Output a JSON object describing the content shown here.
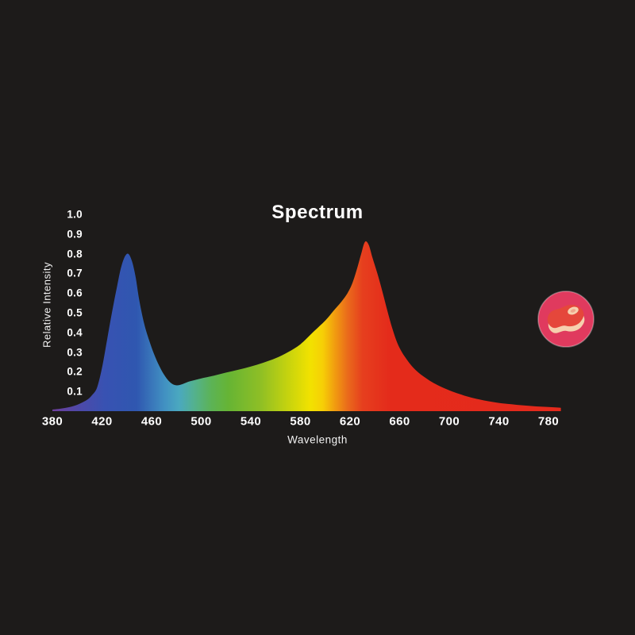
{
  "page": {
    "background_color": "#1d1b1a",
    "text_color": "#ffffff"
  },
  "chart": {
    "title": "Spectrum",
    "xlabel": "Wavelength",
    "ylabel": "Relative Intensity"
  },
  "chart_data": {
    "type": "area",
    "title": "Spectrum",
    "xlabel": "Wavelength",
    "ylabel": "Relative Intensity",
    "x_unit": "nm",
    "xlim": [
      380,
      790
    ],
    "ylim": [
      0,
      1.0
    ],
    "xticks": [
      380,
      420,
      460,
      500,
      540,
      580,
      620,
      660,
      700,
      740,
      780
    ],
    "yticks": [
      0.1,
      0.2,
      0.3,
      0.4,
      0.5,
      0.6,
      0.7,
      0.8,
      0.9,
      1.0
    ],
    "grid": false,
    "legend": false,
    "peaks": [
      {
        "x": 441,
        "y": 0.8,
        "label": "blue peak"
      },
      {
        "x": 632,
        "y": 0.86,
        "label": "red peak"
      }
    ],
    "series": [
      {
        "name": "relative_intensity",
        "fill": "spectral-gradient",
        "points": [
          [
            380,
            0.008
          ],
          [
            388,
            0.014
          ],
          [
            396,
            0.024
          ],
          [
            402,
            0.038
          ],
          [
            408,
            0.058
          ],
          [
            412,
            0.082
          ],
          [
            416,
            0.12
          ],
          [
            420,
            0.22
          ],
          [
            424,
            0.36
          ],
          [
            428,
            0.5
          ],
          [
            432,
            0.63
          ],
          [
            435,
            0.72
          ],
          [
            438,
            0.78
          ],
          [
            441,
            0.8
          ],
          [
            444,
            0.765
          ],
          [
            447,
            0.685
          ],
          [
            450,
            0.565
          ],
          [
            454,
            0.445
          ],
          [
            458,
            0.36
          ],
          [
            462,
            0.29
          ],
          [
            466,
            0.232
          ],
          [
            470,
            0.186
          ],
          [
            474,
            0.152
          ],
          [
            478,
            0.134
          ],
          [
            482,
            0.132
          ],
          [
            486,
            0.14
          ],
          [
            490,
            0.15
          ],
          [
            495,
            0.158
          ],
          [
            500,
            0.166
          ],
          [
            510,
            0.18
          ],
          [
            520,
            0.196
          ],
          [
            530,
            0.211
          ],
          [
            540,
            0.227
          ],
          [
            550,
            0.246
          ],
          [
            560,
            0.269
          ],
          [
            570,
            0.3
          ],
          [
            580,
            0.34
          ],
          [
            590,
            0.4
          ],
          [
            600,
            0.46
          ],
          [
            607,
            0.512
          ],
          [
            613,
            0.556
          ],
          [
            618,
            0.6
          ],
          [
            622,
            0.652
          ],
          [
            626,
            0.732
          ],
          [
            629,
            0.8
          ],
          [
            632,
            0.86
          ],
          [
            635,
            0.846
          ],
          [
            638,
            0.782
          ],
          [
            642,
            0.7
          ],
          [
            646,
            0.61
          ],
          [
            650,
            0.512
          ],
          [
            654,
            0.422
          ],
          [
            658,
            0.348
          ],
          [
            662,
            0.298
          ],
          [
            666,
            0.26
          ],
          [
            670,
            0.228
          ],
          [
            675,
            0.197
          ],
          [
            680,
            0.173
          ],
          [
            686,
            0.148
          ],
          [
            692,
            0.128
          ],
          [
            700,
            0.106
          ],
          [
            708,
            0.088
          ],
          [
            716,
            0.072
          ],
          [
            724,
            0.06
          ],
          [
            732,
            0.05
          ],
          [
            740,
            0.042
          ],
          [
            750,
            0.035
          ],
          [
            760,
            0.029
          ],
          [
            770,
            0.024
          ],
          [
            780,
            0.021
          ],
          [
            790,
            0.017
          ]
        ]
      }
    ],
    "gradient_stops": [
      {
        "nm": 380,
        "color": "#6e3f9c"
      },
      {
        "nm": 402,
        "color": "#4d49a9"
      },
      {
        "nm": 422,
        "color": "#3852b2"
      },
      {
        "nm": 448,
        "color": "#2f57b0"
      },
      {
        "nm": 470,
        "color": "#4190c2"
      },
      {
        "nm": 482,
        "color": "#4aa8c0"
      },
      {
        "nm": 494,
        "color": "#53b190"
      },
      {
        "nm": 508,
        "color": "#5cb356"
      },
      {
        "nm": 522,
        "color": "#66b434"
      },
      {
        "nm": 548,
        "color": "#8fbf25"
      },
      {
        "nm": 570,
        "color": "#c6d30e"
      },
      {
        "nm": 588,
        "color": "#f2e200"
      },
      {
        "nm": 598,
        "color": "#f6cf06"
      },
      {
        "nm": 608,
        "color": "#f19b10"
      },
      {
        "nm": 618,
        "color": "#ea6b1b"
      },
      {
        "nm": 630,
        "color": "#e63f1e"
      },
      {
        "nm": 652,
        "color": "#e42b1b"
      },
      {
        "nm": 790,
        "color": "#e42a1c"
      }
    ]
  },
  "badge": {
    "icon": "steak-icon",
    "circle_color": "#e03a5e",
    "meat_color": "#e5473b",
    "fat_color": "#f6d0ae",
    "fat_inner_color": "#efa78c"
  }
}
